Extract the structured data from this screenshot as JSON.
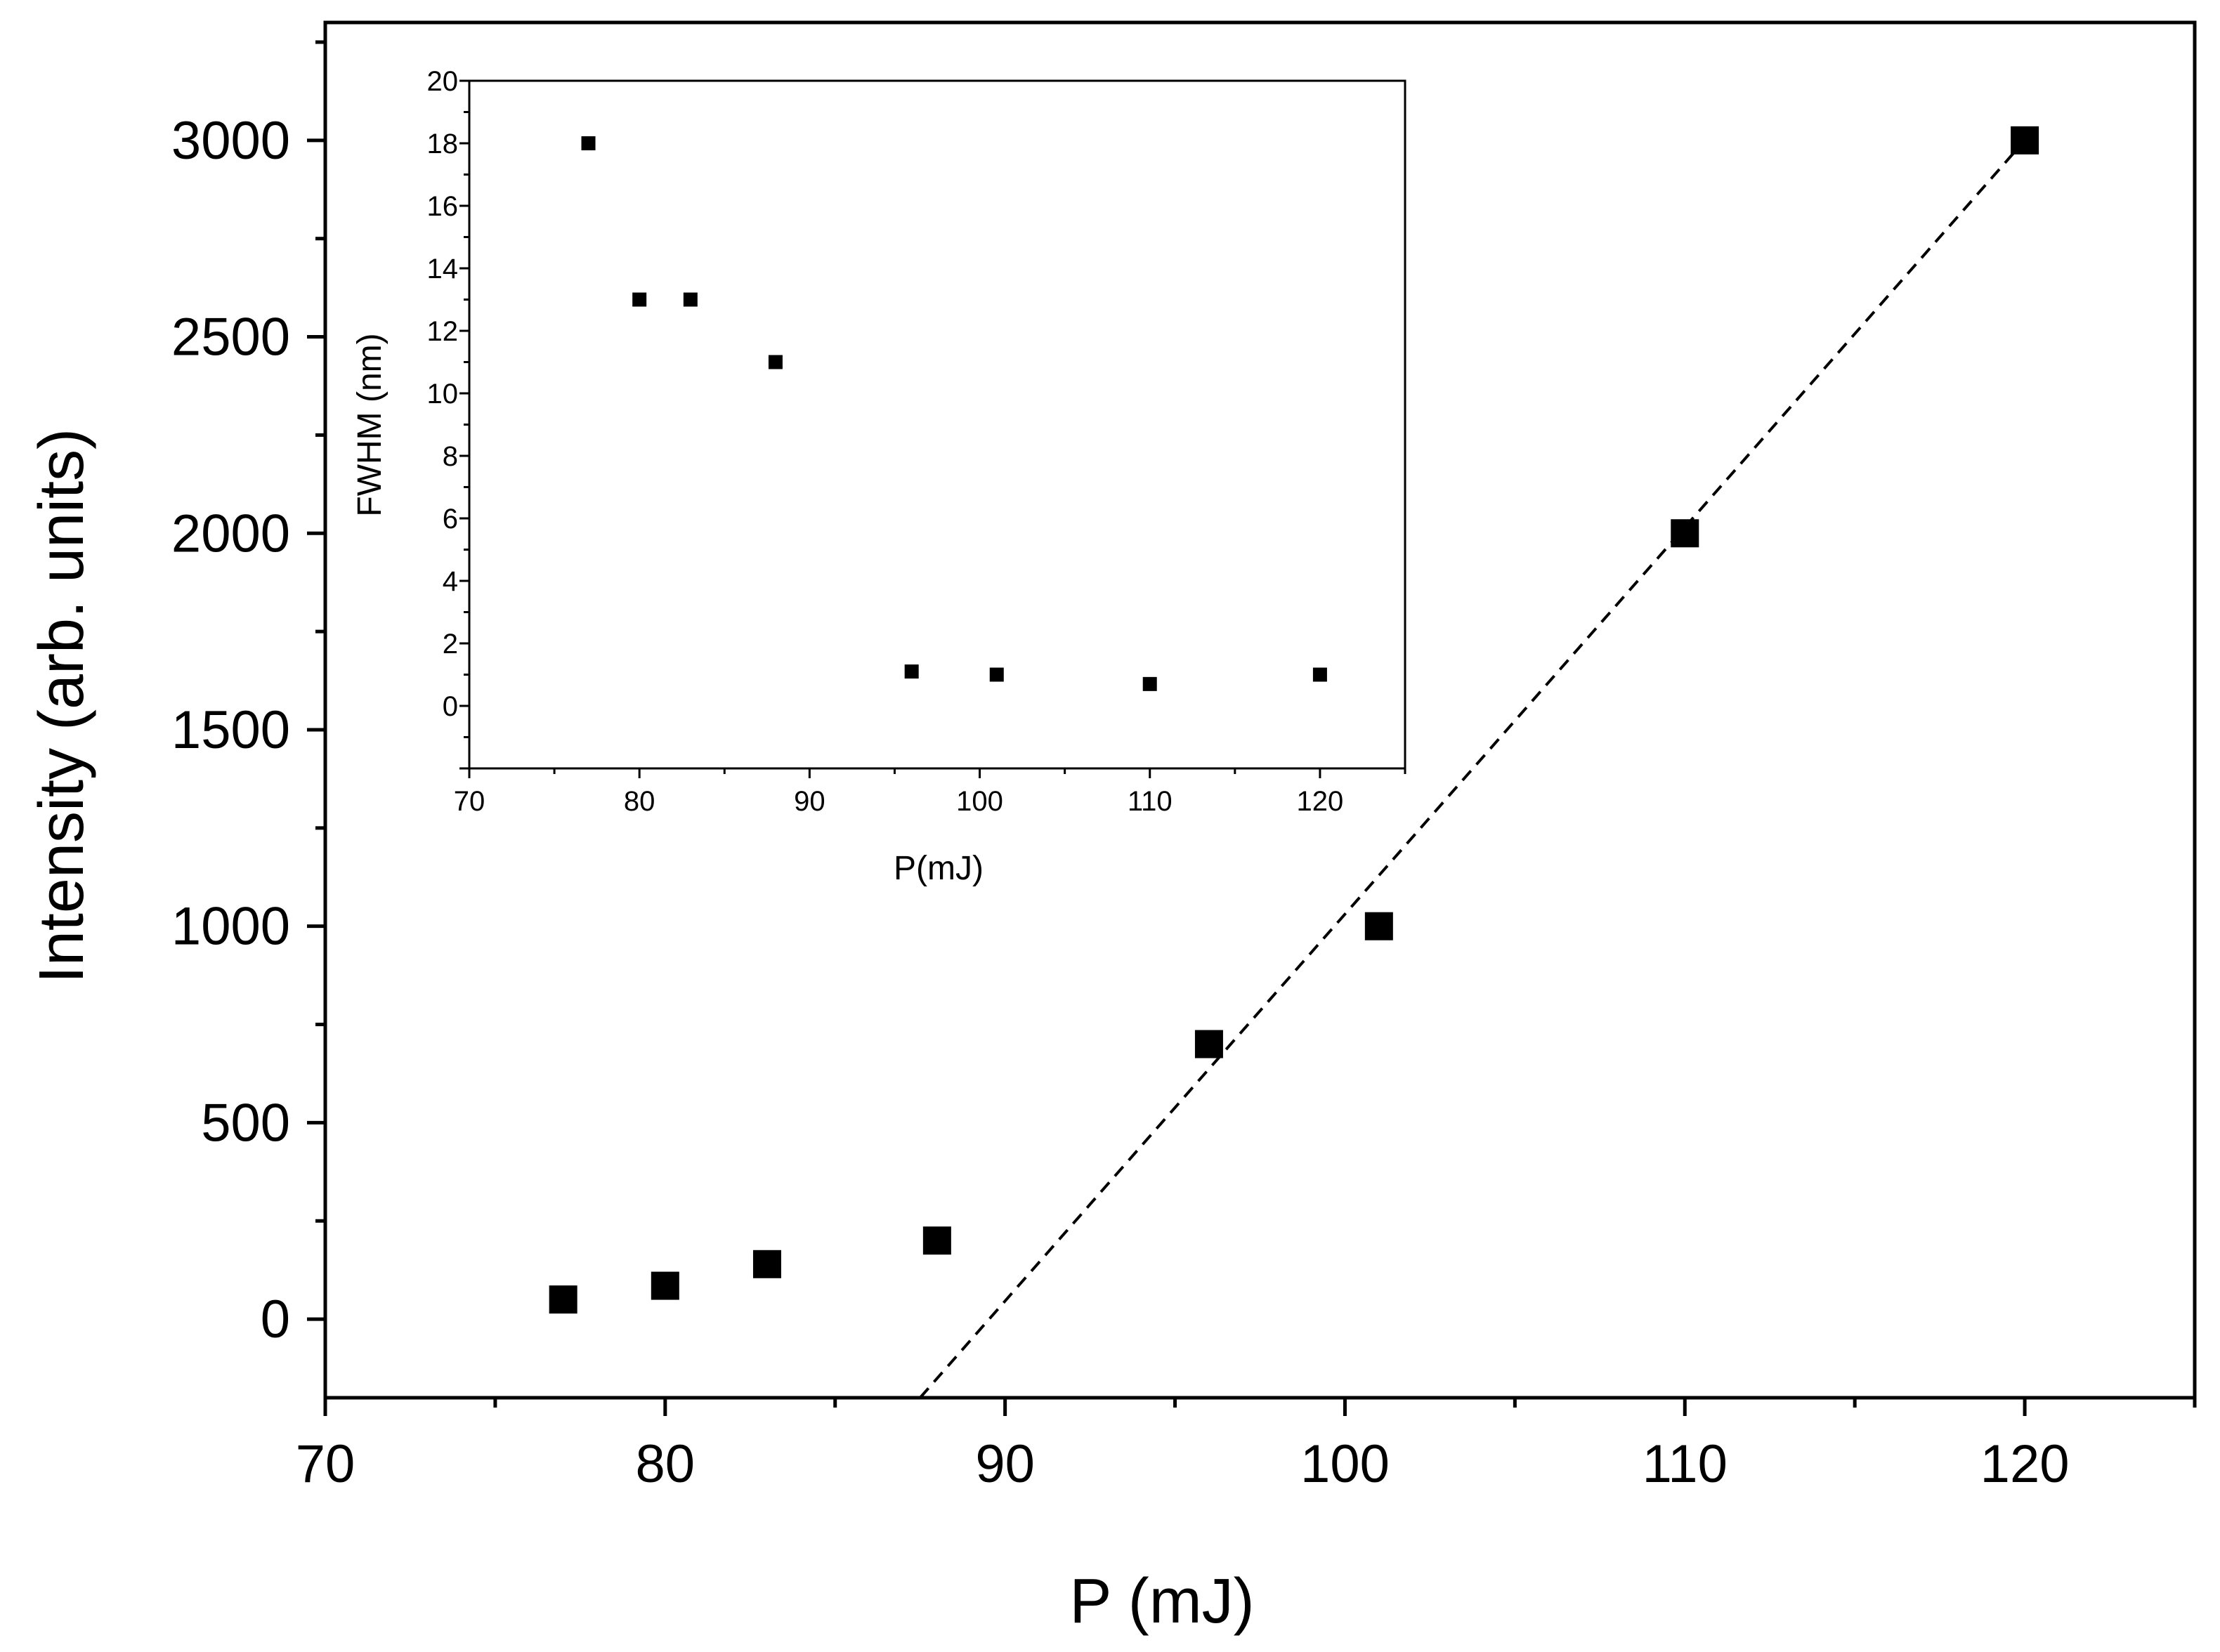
{
  "chart_data": [
    {
      "id": "main",
      "type": "scatter",
      "title": "",
      "xlabel": "P (mJ)",
      "ylabel": "Intensity (arb. units)",
      "xlim": [
        70,
        125
      ],
      "ylim": [
        -200,
        3300
      ],
      "xticks": [
        70,
        80,
        90,
        100,
        110,
        120
      ],
      "yticks": [
        0,
        500,
        1000,
        1500,
        2000,
        2500,
        3000
      ],
      "xtick_labels": [
        "70",
        "80",
        "90",
        "100",
        "110",
        "120"
      ],
      "ytick_labels": [
        "0",
        "500",
        "1000",
        "1500",
        "2000",
        "2500",
        "3000"
      ],
      "grid": false,
      "series": [
        {
          "name": "Intensity",
          "marker": "square",
          "color": "#000000",
          "x": [
            77,
            80,
            83,
            88,
            96,
            101,
            110,
            120
          ],
          "y": [
            50,
            85,
            140,
            200,
            700,
            1000,
            2000,
            3000
          ]
        }
      ],
      "fit_line": {
        "style": "dashed",
        "color": "#000000",
        "x": [
          87.5,
          120
        ],
        "y": [
          -200,
          3000
        ]
      }
    },
    {
      "id": "inset",
      "type": "scatter",
      "title": "",
      "xlabel": "P(mJ)",
      "ylabel": "FWHM (nm)",
      "xlim": [
        70,
        125
      ],
      "ylim": [
        -2,
        20
      ],
      "xticks": [
        70,
        80,
        90,
        100,
        110,
        120
      ],
      "yticks": [
        0,
        2,
        4,
        6,
        8,
        10,
        12,
        14,
        16,
        18,
        20
      ],
      "xtick_labels": [
        "70",
        "80",
        "90",
        "100",
        "110",
        "120"
      ],
      "ytick_labels": [
        "0",
        "2",
        "4",
        "6",
        "8",
        "10",
        "12",
        "14",
        "16",
        "18",
        "20"
      ],
      "grid": false,
      "series": [
        {
          "name": "FWHM",
          "marker": "square",
          "color": "#000000",
          "x": [
            77,
            80,
            83,
            88,
            96,
            101,
            110,
            120
          ],
          "y": [
            18,
            13,
            13,
            11,
            1.1,
            1.0,
            0.7,
            1.0
          ]
        }
      ]
    }
  ]
}
